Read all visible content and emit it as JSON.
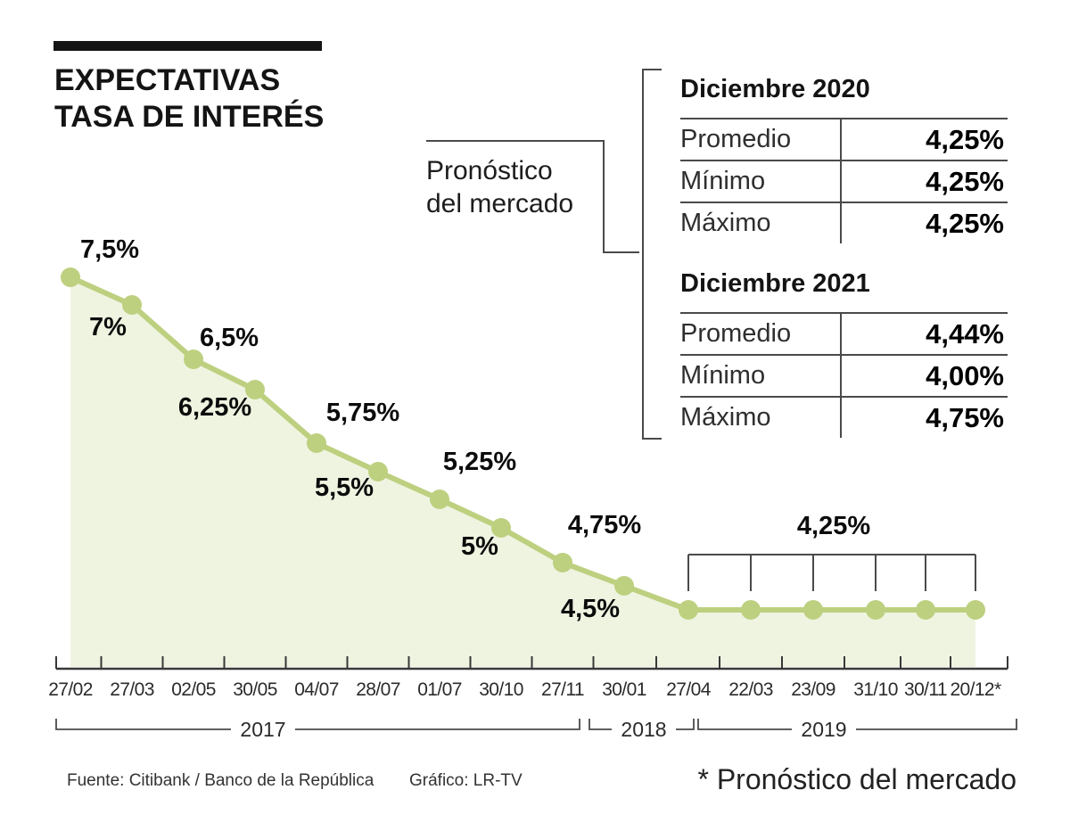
{
  "header": {
    "title_line1": "EXPECTATIVAS",
    "title_line2": "TASA DE INTERÉS"
  },
  "forecast": {
    "label_line1": "Pronóstico",
    "label_line2": "del mercado",
    "tables": [
      {
        "title": "Diciembre 2020",
        "rows": [
          {
            "label": "Promedio",
            "value": "4,25%"
          },
          {
            "label": "Mínimo",
            "value": "4,25%"
          },
          {
            "label": "Máximo",
            "value": "4,25%"
          }
        ]
      },
      {
        "title": "Diciembre 2021",
        "rows": [
          {
            "label": "Promedio",
            "value": "4,44%"
          },
          {
            "label": "Mínimo",
            "value": "4,00%"
          },
          {
            "label": "Máximo",
            "value": "4,75%"
          }
        ]
      }
    ]
  },
  "chart_data": {
    "type": "area",
    "x": [
      "27/02",
      "27/03",
      "02/05",
      "30/05",
      "04/07",
      "28/07",
      "01/07",
      "30/10",
      "27/11",
      "30/01",
      "27/04",
      "22/03",
      "23/09",
      "31/10",
      "30/11",
      "20/12*"
    ],
    "values": [
      7.5,
      7,
      6.5,
      6.25,
      5.75,
      5.5,
      5.25,
      5,
      4.75,
      4.5,
      4.25,
      4.25,
      4.25,
      4.25,
      4.25,
      4.25
    ],
    "point_labels": [
      "7,5%",
      "7%",
      "6,5%",
      "6,25%",
      "5,75%",
      "5,5%",
      "5,25%",
      "5%",
      "4,75%",
      "4,5%",
      null,
      null,
      null,
      null,
      null,
      null
    ],
    "flat_segment_label": "4,25%",
    "year_groups": [
      {
        "label": "2017",
        "from": "27/02",
        "to": "27/11"
      },
      {
        "label": "2018",
        "from": "30/01",
        "to": "27/04"
      },
      {
        "label": "2019",
        "from": "22/03",
        "to": "20/12*"
      }
    ],
    "ylim": [
      4.25,
      7.5
    ],
    "grid": false,
    "legend": false,
    "line_color": "#bdd07f",
    "fill_color": "#eff4e1"
  },
  "footer": {
    "source": "Fuente: Citibank / Banco de la República",
    "credit": "Gráfico: LR-TV",
    "note": "* Pronóstico del mercado"
  }
}
